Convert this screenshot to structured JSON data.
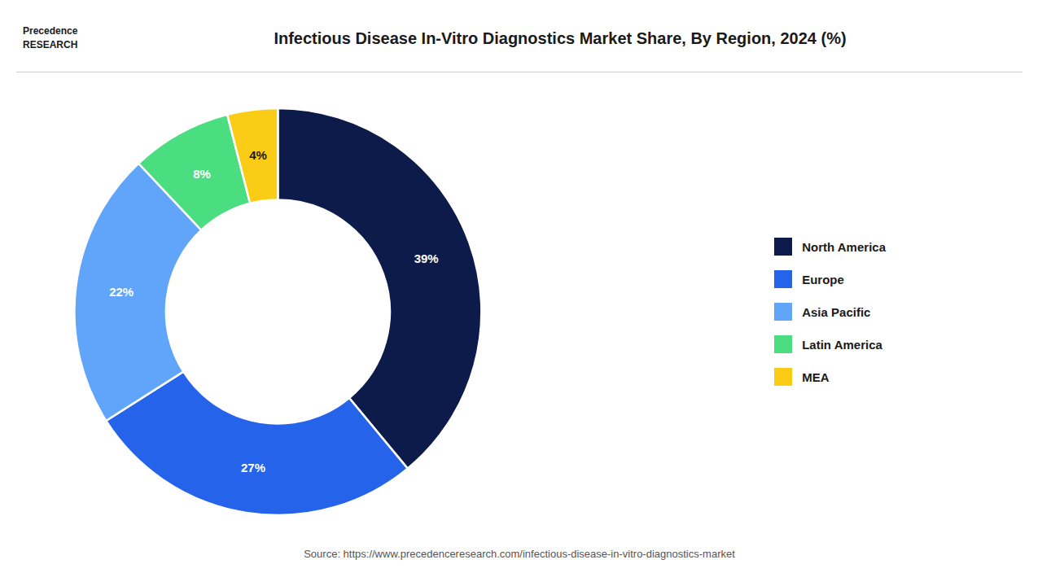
{
  "chart_data": {
    "type": "pie",
    "title": "Infectious Disease In-Vitro Diagnostics Market Share, By Region, 2024 (%)",
    "categories": [
      "North America",
      "Europe",
      "Asia Pacific",
      "Latin America",
      "MEA"
    ],
    "values": [
      39,
      27,
      22,
      8,
      4
    ],
    "value_labels": [
      "39%",
      "27%",
      "22%",
      "8%",
      "4%"
    ],
    "colors": [
      "#0d1b4b",
      "#2563eb",
      "#60a5fa",
      "#4ade80",
      "#facc15"
    ],
    "data_labels": true,
    "legend": "right",
    "annotations": [
      "Source: https://www.precedenceresearch.com/infectious-disease-in-vitro-diagnostics-market",
      "Precedence\nRESEARCH"
    ]
  }
}
